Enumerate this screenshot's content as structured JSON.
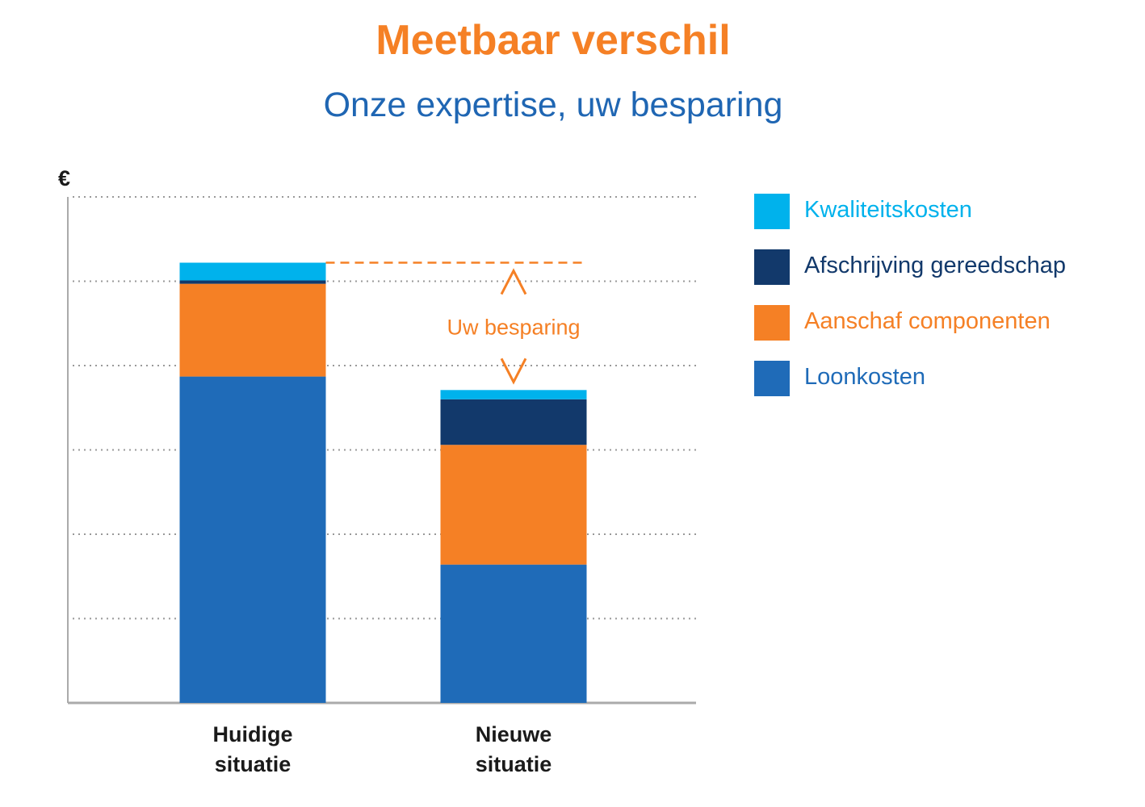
{
  "title": "Meetbaar verschil",
  "subtitle": "Onze expertise, uw besparing",
  "colors": {
    "title": "#f58025",
    "subtitle": "#1f66b3",
    "Kwaliteitskosten": "#00b2ec",
    "Afschrijving gereedschap": "#12396b",
    "Aanschaf componenten": "#f58025",
    "Loonkosten": "#1f6bb8",
    "axis": "#aaaaaa",
    "grid": "#999999",
    "text": "#1a1a1a"
  },
  "chart_data": {
    "type": "bar",
    "stacked": true,
    "ylabel": "€",
    "ylim": [
      0,
      6
    ],
    "yticks_gridlines": [
      1,
      2,
      3,
      4,
      5,
      6
    ],
    "grid": true,
    "legend_position": "right",
    "categories": [
      "Huidige situatie",
      "Nieuwe situatie"
    ],
    "category_lines": [
      [
        "Huidige",
        "situatie"
      ],
      [
        "Nieuwe",
        "situatie"
      ]
    ],
    "series": [
      {
        "name": "Loonkosten",
        "values": [
          3.87,
          1.64
        ]
      },
      {
        "name": "Aanschaf componenten",
        "values": [
          1.1,
          1.42
        ]
      },
      {
        "name": "Afschrijving gereedschap",
        "values": [
          0.04,
          0.54
        ]
      },
      {
        "name": "Kwaliteitskosten",
        "values": [
          0.21,
          0.11
        ]
      }
    ],
    "legend_order": [
      "Kwaliteitskosten",
      "Afschrijving gereedschap",
      "Aanschaf componenten",
      "Loonkosten"
    ],
    "annotation": {
      "text": "Uw besparing",
      "from": "Huidige situatie",
      "to": "Nieuwe situatie"
    }
  }
}
